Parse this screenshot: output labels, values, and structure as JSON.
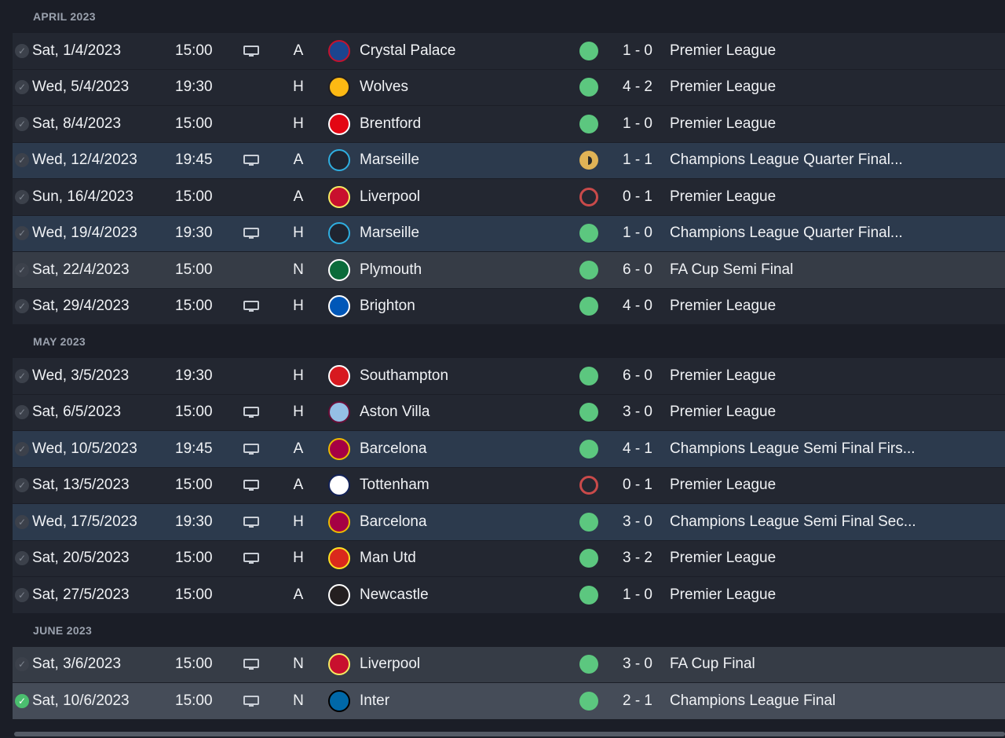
{
  "months": [
    {
      "title": "APRIL 2023",
      "fixtures": [
        {
          "date": "Sat, 1/4/2023",
          "time": "15:00",
          "tv": true,
          "venue": "A",
          "team": "Crystal Palace",
          "crest": "palace-crest-icon",
          "result": "win",
          "score": "1 - 0",
          "competition": "Premier League",
          "style": "plain",
          "checked": false
        },
        {
          "date": "Wed, 5/4/2023",
          "time": "19:30",
          "tv": false,
          "venue": "H",
          "team": "Wolves",
          "crest": "wolves-crest-icon",
          "result": "win",
          "score": "4 - 2",
          "competition": "Premier League",
          "style": "plain",
          "checked": false
        },
        {
          "date": "Sat, 8/4/2023",
          "time": "15:00",
          "tv": false,
          "venue": "H",
          "team": "Brentford",
          "crest": "brentford-crest-icon",
          "result": "win",
          "score": "1 - 0",
          "competition": "Premier League",
          "style": "plain",
          "checked": false
        },
        {
          "date": "Wed, 12/4/2023",
          "time": "19:45",
          "tv": true,
          "venue": "A",
          "team": "Marseille",
          "crest": "marseille-crest-icon",
          "result": "draw",
          "score": "1 - 1",
          "competition": "Champions League Quarter Final...",
          "style": "europe",
          "checked": false
        },
        {
          "date": "Sun, 16/4/2023",
          "time": "15:00",
          "tv": false,
          "venue": "A",
          "team": "Liverpool",
          "crest": "liverpool-crest-icon",
          "result": "loss",
          "score": "0 - 1",
          "competition": "Premier League",
          "style": "plain",
          "checked": false
        },
        {
          "date": "Wed, 19/4/2023",
          "time": "19:30",
          "tv": true,
          "venue": "H",
          "team": "Marseille",
          "crest": "marseille-crest-icon",
          "result": "win",
          "score": "1 - 0",
          "competition": "Champions League Quarter Final...",
          "style": "europe",
          "checked": false
        },
        {
          "date": "Sat, 22/4/2023",
          "time": "15:00",
          "tv": false,
          "venue": "N",
          "team": "Plymouth",
          "crest": "plymouth-crest-icon",
          "result": "win",
          "score": "6 - 0",
          "competition": "FA Cup Semi Final",
          "style": "cup",
          "checked": false
        },
        {
          "date": "Sat, 29/4/2023",
          "time": "15:00",
          "tv": true,
          "venue": "H",
          "team": "Brighton",
          "crest": "brighton-crest-icon",
          "result": "win",
          "score": "4 - 0",
          "competition": "Premier League",
          "style": "plain",
          "checked": false
        }
      ]
    },
    {
      "title": "MAY 2023",
      "fixtures": [
        {
          "date": "Wed, 3/5/2023",
          "time": "19:30",
          "tv": false,
          "venue": "H",
          "team": "Southampton",
          "crest": "southampton-crest-icon",
          "result": "win",
          "score": "6 - 0",
          "competition": "Premier League",
          "style": "plain",
          "checked": false
        },
        {
          "date": "Sat, 6/5/2023",
          "time": "15:00",
          "tv": true,
          "venue": "H",
          "team": "Aston Villa",
          "crest": "aston-villa-crest-icon",
          "result": "win",
          "score": "3 - 0",
          "competition": "Premier League",
          "style": "plain",
          "checked": false
        },
        {
          "date": "Wed, 10/5/2023",
          "time": "19:45",
          "tv": true,
          "venue": "A",
          "team": "Barcelona",
          "crest": "barcelona-crest-icon",
          "result": "win",
          "score": "4 - 1",
          "competition": "Champions League Semi Final Firs...",
          "style": "europe",
          "checked": false
        },
        {
          "date": "Sat, 13/5/2023",
          "time": "15:00",
          "tv": true,
          "venue": "A",
          "team": "Tottenham",
          "crest": "tottenham-crest-icon",
          "result": "loss",
          "score": "0 - 1",
          "competition": "Premier League",
          "style": "plain",
          "checked": false
        },
        {
          "date": "Wed, 17/5/2023",
          "time": "19:30",
          "tv": true,
          "venue": "H",
          "team": "Barcelona",
          "crest": "barcelona-crest-icon",
          "result": "win",
          "score": "3 - 0",
          "competition": "Champions League Semi Final Sec...",
          "style": "europe",
          "checked": false
        },
        {
          "date": "Sat, 20/5/2023",
          "time": "15:00",
          "tv": true,
          "venue": "H",
          "team": "Man Utd",
          "crest": "man-utd-crest-icon",
          "result": "win",
          "score": "3 - 2",
          "competition": "Premier League",
          "style": "plain",
          "checked": false
        },
        {
          "date": "Sat, 27/5/2023",
          "time": "15:00",
          "tv": false,
          "venue": "A",
          "team": "Newcastle",
          "crest": "newcastle-crest-icon",
          "result": "win",
          "score": "1 - 0",
          "competition": "Premier League",
          "style": "plain",
          "checked": false
        }
      ]
    },
    {
      "title": "JUNE 2023",
      "fixtures": [
        {
          "date": "Sat, 3/6/2023",
          "time": "15:00",
          "tv": true,
          "venue": "N",
          "team": "Liverpool",
          "crest": "liverpool-crest-icon",
          "result": "win",
          "score": "3 - 0",
          "competition": "FA Cup Final",
          "style": "cup",
          "checked": false
        },
        {
          "date": "Sat, 10/6/2023",
          "time": "15:00",
          "tv": true,
          "venue": "N",
          "team": "Inter",
          "crest": "inter-crest-icon",
          "result": "win",
          "score": "2 - 1",
          "competition": "Champions League Final",
          "style": "final",
          "checked": true
        }
      ]
    }
  ],
  "crest_colors": {
    "palace-crest-icon": {
      "bg": "#1b458f",
      "fg": "#c4122e"
    },
    "wolves-crest-icon": {
      "bg": "#fdb913",
      "fg": "#231f20"
    },
    "brentford-crest-icon": {
      "bg": "#e30613",
      "fg": "#ffffff"
    },
    "marseille-crest-icon": {
      "bg": "#1f2430",
      "fg": "#2faee0"
    },
    "liverpool-crest-icon": {
      "bg": "#c8102e",
      "fg": "#f6eb61"
    },
    "plymouth-crest-icon": {
      "bg": "#0b6b3a",
      "fg": "#ffffff"
    },
    "brighton-crest-icon": {
      "bg": "#0057b8",
      "fg": "#ffffff"
    },
    "southampton-crest-icon": {
      "bg": "#d71920",
      "fg": "#ffffff"
    },
    "aston-villa-crest-icon": {
      "bg": "#95bfe5",
      "fg": "#670e36"
    },
    "barcelona-crest-icon": {
      "bg": "#a50044",
      "fg": "#edbb00"
    },
    "tottenham-crest-icon": {
      "bg": "#ffffff",
      "fg": "#132257"
    },
    "man-utd-crest-icon": {
      "bg": "#da291c",
      "fg": "#fbe122"
    },
    "newcastle-crest-icon": {
      "bg": "#241f20",
      "fg": "#ffffff"
    },
    "inter-crest-icon": {
      "bg": "#0068a8",
      "fg": "#000000"
    }
  }
}
